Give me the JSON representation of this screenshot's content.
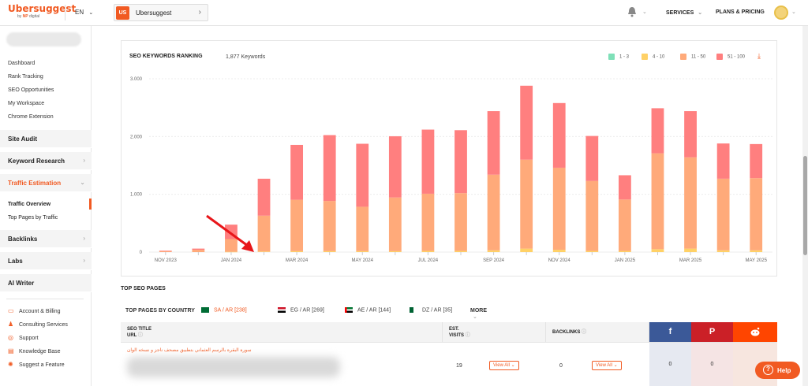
{
  "header": {
    "logo": "Ubersuggest",
    "logo_sub_prefix": "by",
    "logo_sub_brand": "NP",
    "logo_sub_suffix": "digital",
    "language": "EN",
    "project_badge": "US",
    "project_name": "Ubersuggest",
    "services": "SERVICES",
    "plans": "PLANS & PRICING",
    "icons": {
      "bell": "bell-icon",
      "chevron": "chevron-down-icon"
    }
  },
  "sidebar": {
    "links": [
      "Dashboard",
      "Rank Tracking",
      "SEO Opportunities",
      "My Workspace",
      "Chrome Extension"
    ],
    "sections": {
      "site_audit": "Site Audit",
      "keyword_research": "Keyword Research",
      "traffic_estimation": "Traffic Estimation",
      "backlinks": "Backlinks",
      "labs": "Labs",
      "ai_writer": "AI Writer"
    },
    "traffic_items": [
      "Traffic Overview",
      "Top Pages by Traffic"
    ],
    "footer": [
      "Account & Billing",
      "Consulting Services",
      "Support",
      "Knowledge Base",
      "Suggest a Feature"
    ]
  },
  "chart_section": {
    "title": "SEO KEYWORDS RANKING",
    "keyword_count": "1,877 Keywords",
    "legend": [
      {
        "label": "1 - 3",
        "color": "#7fe0b8"
      },
      {
        "label": "4 - 10",
        "color": "#ffd166"
      },
      {
        "label": "11 - 50",
        "color": "#ffaa7a"
      },
      {
        "label": "51 - 100",
        "color": "#ff7f7f"
      }
    ]
  },
  "chart_data": {
    "type": "bar",
    "stacked": true,
    "yticks": [
      "0",
      "1.000",
      "2.000",
      "3.000"
    ],
    "ylim": [
      0,
      3000
    ],
    "x_tick_labels": [
      "NOV 2023",
      "JAN 2024",
      "MAR 2024",
      "MAY 2024",
      "JUL 2024",
      "SEP 2024",
      "NOV 2024",
      "JAN 2025",
      "MAR 2025",
      "MAY 2025"
    ],
    "categories": [
      "NOV 2023",
      "DEC 2023",
      "JAN 2024",
      "FEB 2024",
      "MAR 2024",
      "APR 2024",
      "MAY 2024",
      "JUN 2024",
      "JUL 2024",
      "AUG 2024",
      "SEP 2024",
      "OCT 2024",
      "NOV 2024",
      "DEC 2024",
      "JAN 2025",
      "FEB 2025",
      "MAR 2025",
      "APR 2025",
      "MAY 2025"
    ],
    "series": [
      {
        "name": "1 - 3",
        "color": "#7fe0b8",
        "values": [
          0,
          0,
          0,
          0,
          0,
          0,
          0,
          0,
          0,
          0,
          0,
          0,
          0,
          0,
          0,
          0,
          0,
          0,
          0
        ]
      },
      {
        "name": "4 - 10",
        "color": "#ffd166",
        "values": [
          0,
          0,
          5,
          10,
          15,
          15,
          15,
          15,
          20,
          20,
          30,
          60,
          40,
          20,
          20,
          50,
          60,
          30,
          30
        ]
      },
      {
        "name": "11 - 50",
        "color": "#ffaa7a",
        "values": [
          15,
          40,
          220,
          620,
          890,
          870,
          770,
          930,
          990,
          1000,
          1310,
          1540,
          1420,
          1210,
          890,
          1660,
          1580,
          1240,
          1250
        ]
      },
      {
        "name": "51 - 100",
        "color": "#ff7f7f",
        "values": [
          10,
          20,
          250,
          640,
          950,
          1140,
          1090,
          1060,
          1110,
          1090,
          1100,
          1280,
          1120,
          780,
          420,
          780,
          800,
          610,
          590
        ]
      }
    ]
  },
  "top_pages": {
    "title": "TOP SEO PAGES",
    "by_country_label": "TOP PAGES BY COUNTRY",
    "countries": [
      {
        "label": "SA / AR [238]",
        "active": true
      },
      {
        "label": "EG / AR [269]",
        "active": false
      },
      {
        "label": "AE / AR [144]",
        "active": false
      },
      {
        "label": "DZ / AR [35]",
        "active": false
      }
    ],
    "more": "MORE",
    "columns": {
      "seo_title": "SEO TITLE",
      "url": "URL",
      "est": "EST.",
      "visits": "VISITS",
      "backlinks": "BACKLINKS"
    },
    "social": {
      "facebook": {
        "icon": "f",
        "color": "#3b5998"
      },
      "pinterest": {
        "icon": "P",
        "color": "#cb2027"
      },
      "reddit": {
        "icon": "reddit-icon",
        "color": "#ff4500"
      }
    },
    "rows": [
      {
        "title": "سورة البقرة بالرسم العثماني بتطبيق مصحف ناجز و نسخه الوان",
        "visits": "19",
        "backlinks": "0",
        "view_all": "View All",
        "facebook": "0",
        "pinterest": "0"
      }
    ]
  },
  "help": {
    "label": "Help"
  }
}
